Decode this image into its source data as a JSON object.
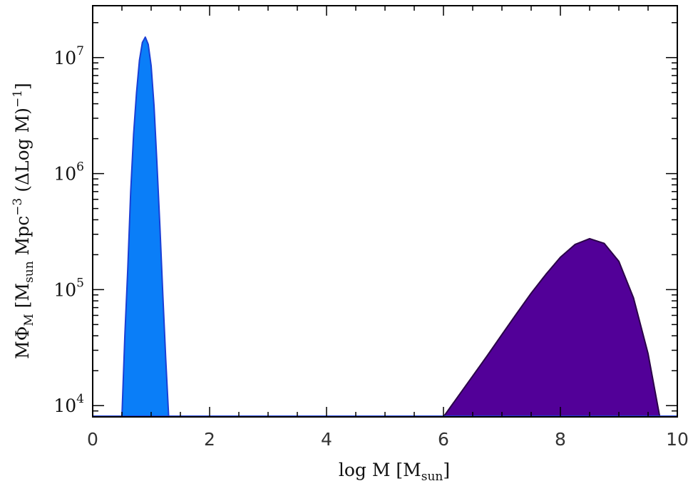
{
  "chart_data": {
    "type": "area",
    "xlabel": {
      "prefix": "log M [M",
      "sub": "sun",
      "suffix": "]"
    },
    "ylabel": {
      "p1": "MΦ",
      "p1_sub": "M",
      "p2": " [M",
      "p2_sub": "sun",
      "p3": " Mpc",
      "p3_sup": "−3",
      "p4": " (ΔLog M)",
      "p4_sup": "−1",
      "p5": "]"
    },
    "xlim": [
      0,
      10
    ],
    "ylim": [
      8000,
      28000000
    ],
    "yscale": "log",
    "x_ticks": [
      {
        "value": 0,
        "label": "0"
      },
      {
        "value": 2,
        "label": "2"
      },
      {
        "value": 4,
        "label": "4"
      },
      {
        "value": 6,
        "label": "6"
      },
      {
        "value": 8,
        "label": "8"
      },
      {
        "value": 10,
        "label": "10"
      }
    ],
    "y_ticks": [
      {
        "value": 10000,
        "base": "10",
        "exp": "4"
      },
      {
        "value": 100000,
        "base": "10",
        "exp": "5"
      },
      {
        "value": 1000000,
        "base": "10",
        "exp": "6"
      },
      {
        "value": 10000000,
        "base": "10",
        "exp": "7"
      }
    ],
    "grid": false,
    "series": [
      {
        "fill": "#0a7ef8",
        "stroke": "#1a3fd6",
        "x": [
          0.5,
          0.55,
          0.6,
          0.65,
          0.7,
          0.75,
          0.8,
          0.85,
          0.9,
          0.95,
          1.0,
          1.05,
          1.1,
          1.15,
          1.2,
          1.25,
          1.3
        ],
        "y": [
          8000,
          40000,
          150000,
          700000,
          2200000,
          5000000,
          9500000,
          13500000,
          15000000,
          13000000,
          8500000,
          3800000,
          1200000,
          350000,
          90000,
          25000,
          8000
        ]
      },
      {
        "fill": "#520098",
        "stroke": "#2a0048",
        "x": [
          6.0,
          6.25,
          6.5,
          6.75,
          7.0,
          7.25,
          7.5,
          7.75,
          8.0,
          8.25,
          8.5,
          8.75,
          9.0,
          9.25,
          9.5,
          9.7
        ],
        "y": [
          8000,
          12000,
          18000,
          27000,
          41000,
          62000,
          93000,
          135000,
          190000,
          245000,
          275000,
          250000,
          175000,
          85000,
          28000,
          8000
        ]
      }
    ]
  }
}
